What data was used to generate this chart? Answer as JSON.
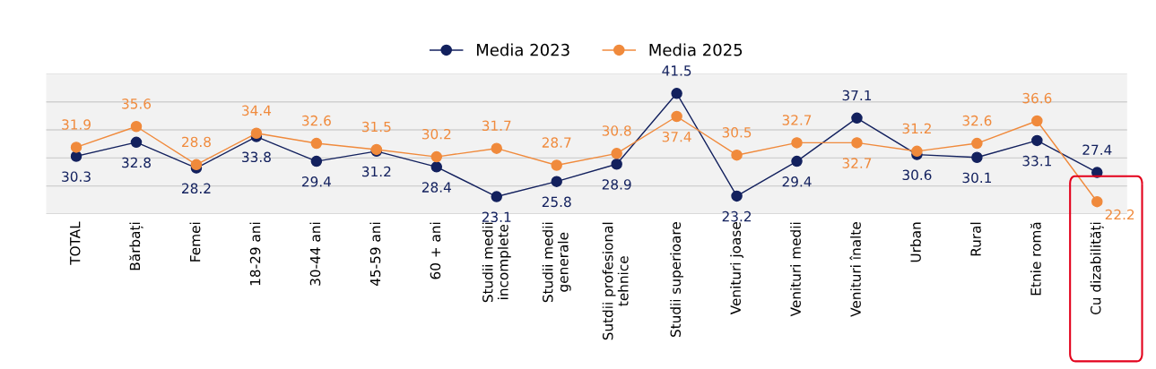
{
  "chart_data": {
    "type": "line",
    "categories": [
      "TOTAL",
      "Bărbați",
      "Femei",
      "18-29 ani",
      "30-44 ani",
      "45-59 ani",
      "60 + ani",
      "Studii medii\nincomplete",
      "Studii medii\ngenerale",
      "Sutdii profesional\ntehnice",
      "Studii superioare",
      "Venituri joase",
      "Venituri medii",
      "Venituri înalte",
      "Urban",
      "Rural",
      "Etnie romă",
      "Cu dizabilități"
    ],
    "series": [
      {
        "name": "Media 2023",
        "color": "#13215e",
        "values": [
          30.3,
          32.8,
          28.2,
          33.8,
          29.4,
          31.2,
          28.4,
          23.1,
          25.8,
          28.9,
          41.5,
          23.2,
          29.4,
          37.1,
          30.6,
          30.1,
          33.1,
          27.4
        ]
      },
      {
        "name": "Media 2025",
        "color": "#f08a3c",
        "values": [
          31.9,
          35.6,
          28.8,
          34.4,
          32.6,
          31.5,
          30.2,
          31.7,
          28.7,
          30.8,
          37.4,
          30.5,
          32.7,
          32.7,
          31.2,
          32.6,
          36.6,
          22.2
        ]
      }
    ],
    "ylim": [
      20,
      45
    ],
    "yticks": [
      {
        "value": 20,
        "label": null
      },
      {
        "value": 25,
        "label": null
      },
      {
        "value": 30,
        "label": null
      },
      {
        "value": 35,
        "label": null
      },
      {
        "value": 40,
        "label": null
      },
      {
        "value": 45,
        "label": null
      }
    ],
    "data_labels": true,
    "marker": "circle",
    "line_style": "solid",
    "grid": "y",
    "legend": "top",
    "tick_labels": "x"
  }
}
